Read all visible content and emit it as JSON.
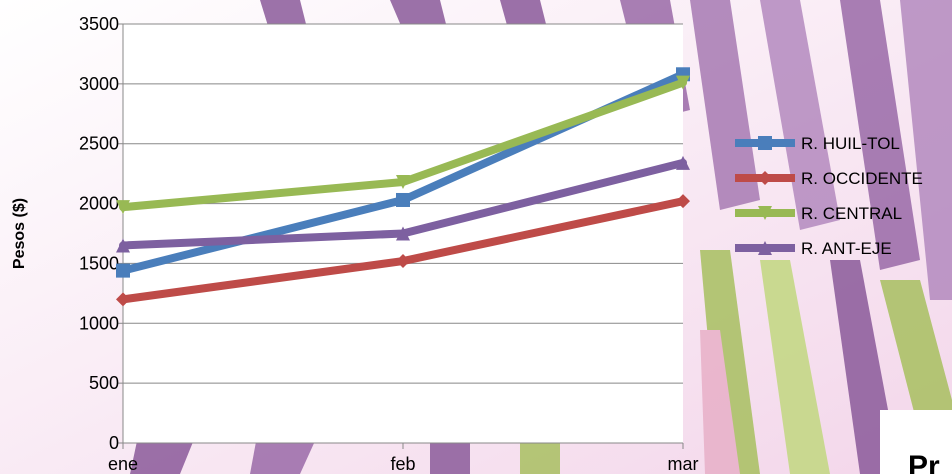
{
  "chart_data": {
    "type": "line",
    "title": "",
    "xlabel": "",
    "ylabel": "Pesos ($)",
    "categories": [
      "ene",
      "feb",
      "mar"
    ],
    "ylim": [
      0,
      3500
    ],
    "yticks": [
      0,
      500,
      1000,
      1500,
      2000,
      2500,
      3000,
      3500
    ],
    "grid": "horizontal",
    "legend_position": "right",
    "series": [
      {
        "name": "R. HUIL-TOL",
        "values": [
          1440,
          2030,
          3080
        ],
        "color": "#4a7ebb",
        "marker": "square"
      },
      {
        "name": "R. OCCIDENTE",
        "values": [
          1200,
          1520,
          2020
        ],
        "color": "#be4b48",
        "marker": "diamond"
      },
      {
        "name": "R. CENTRAL",
        "values": [
          1970,
          2180,
          3010
        ],
        "color": "#98b954",
        "marker": "triangle-down"
      },
      {
        "name": "R. ANT-EJE",
        "values": [
          1650,
          1750,
          2340
        ],
        "color": "#7d60a0",
        "marker": "triangle-up"
      }
    ]
  },
  "corner_text": "Pr"
}
